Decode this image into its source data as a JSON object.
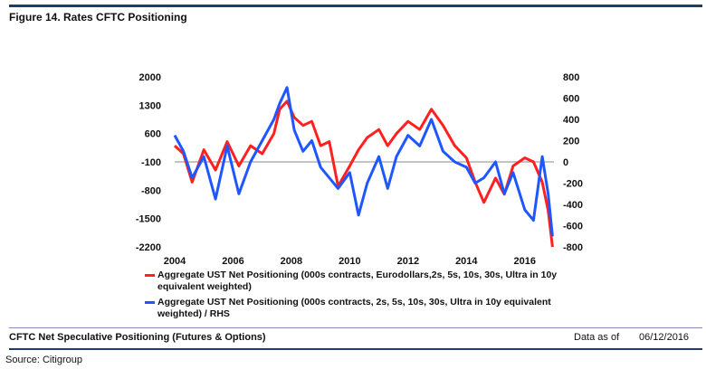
{
  "figure": {
    "title": "Figure 14. Rates CFTC Positioning",
    "footer_title": "CFTC Net Speculative Positioning (Futures & Options)",
    "data_as_of_label": "Data as of",
    "data_as_of_date": "06/12/2016",
    "source": "Source: Citigroup"
  },
  "colors": {
    "red_series": "#ff2020",
    "blue_series": "#1f57ff",
    "zero_line": "#8a8a8a",
    "rule": "#1f3b73"
  },
  "chart_data": {
    "type": "line",
    "x_ticks": [
      "2004",
      "2006",
      "2008",
      "2010",
      "2012",
      "2014",
      "2016"
    ],
    "xlim": [
      2004,
      2017
    ],
    "left_axis": {
      "ticks": [
        "2000",
        "1300",
        "600",
        "-100",
        "-800",
        "-1500",
        "-2200"
      ],
      "ylim": [
        -2200,
        2000
      ]
    },
    "right_axis": {
      "ticks": [
        "800",
        "600",
        "400",
        "200",
        "0",
        "-200",
        "-400",
        "-600",
        "-800"
      ],
      "ylim": [
        -800,
        800
      ]
    },
    "grid": false,
    "legend_position": "bottom",
    "series": [
      {
        "name": "Aggregate UST Net Positioning (000s contracts, Eurodollars,2s, 5s, 10s, 30s, Ultra in 10y equivalent weighted)",
        "axis": "left",
        "color": "#ff2020",
        "x": [
          2004.0,
          2004.3,
          2004.6,
          2005.0,
          2005.4,
          2005.8,
          2006.2,
          2006.6,
          2007.0,
          2007.4,
          2007.6,
          2007.85,
          2008.1,
          2008.4,
          2008.7,
          2009.0,
          2009.3,
          2009.6,
          2010.0,
          2010.3,
          2010.6,
          2011.0,
          2011.3,
          2011.6,
          2012.0,
          2012.4,
          2012.8,
          2013.2,
          2013.6,
          2014.0,
          2014.3,
          2014.6,
          2015.0,
          2015.3,
          2015.6,
          2016.0,
          2016.3,
          2016.6,
          2016.8,
          2016.95
        ],
        "values": [
          300,
          100,
          -600,
          200,
          -300,
          400,
          -200,
          300,
          100,
          600,
          1200,
          1400,
          1000,
          800,
          900,
          300,
          400,
          -700,
          -200,
          200,
          500,
          700,
          300,
          600,
          900,
          700,
          1200,
          800,
          300,
          0,
          -600,
          -1100,
          -500,
          -900,
          -200,
          0,
          -100,
          -600,
          -1300,
          -2200
        ]
      },
      {
        "name": "Aggregate UST Net Positioning (000s contracts, 2s, 5s, 10s, 30s, Ultra in 10y equivalent weighted) / RHS",
        "axis": "right",
        "color": "#1f57ff",
        "x": [
          2004.0,
          2004.3,
          2004.6,
          2005.0,
          2005.4,
          2005.8,
          2006.2,
          2006.6,
          2007.0,
          2007.4,
          2007.6,
          2007.85,
          2008.1,
          2008.4,
          2008.7,
          2009.0,
          2009.3,
          2009.6,
          2010.0,
          2010.3,
          2010.6,
          2011.0,
          2011.3,
          2011.6,
          2012.0,
          2012.4,
          2012.8,
          2013.2,
          2013.6,
          2014.0,
          2014.3,
          2014.6,
          2015.0,
          2015.3,
          2015.6,
          2016.0,
          2016.3,
          2016.6,
          2016.8,
          2016.95
        ],
        "values": [
          250,
          100,
          -150,
          50,
          -350,
          150,
          -300,
          0,
          200,
          400,
          550,
          700,
          300,
          100,
          200,
          -50,
          -150,
          -250,
          -100,
          -500,
          -200,
          50,
          -250,
          50,
          250,
          150,
          400,
          100,
          0,
          -50,
          -200,
          -150,
          0,
          -300,
          -100,
          -450,
          -550,
          50,
          -300,
          -700
        ]
      }
    ]
  }
}
